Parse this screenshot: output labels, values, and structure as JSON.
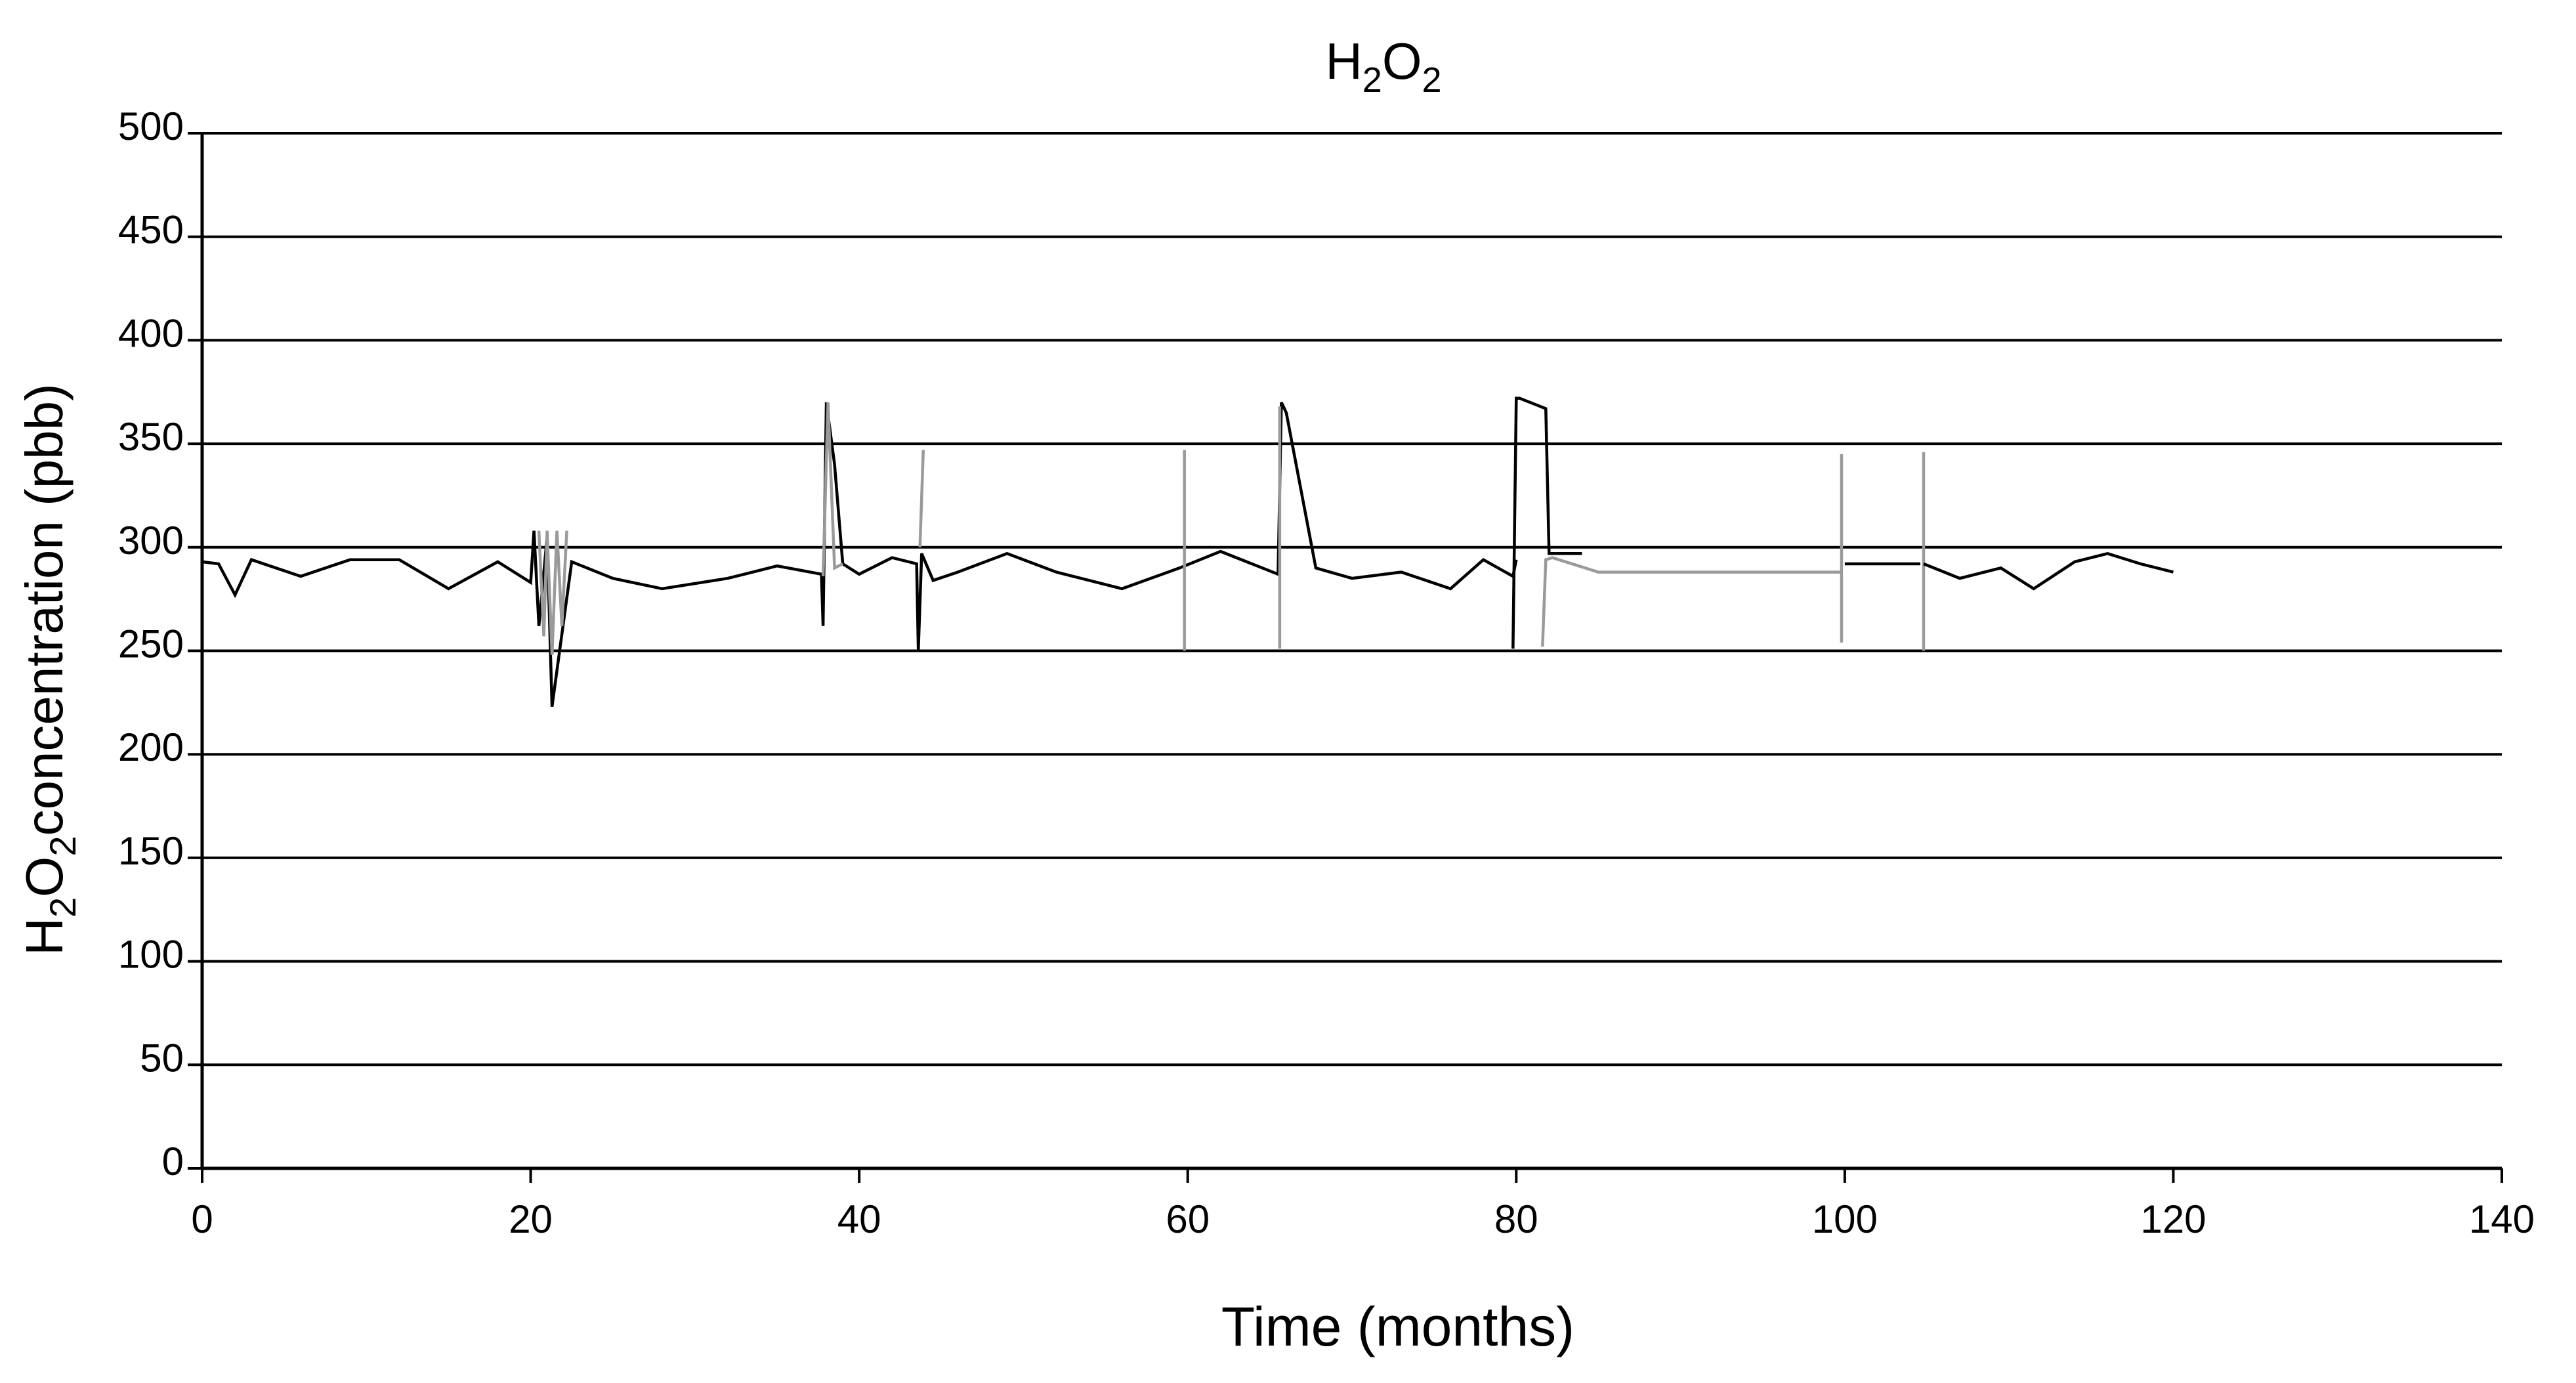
{
  "chart_data": {
    "type": "line",
    "title": {
      "base1": "H",
      "sub1": "2",
      "base2": "O",
      "sub2": "2"
    },
    "xlabel": "Time (months)",
    "ylabel": {
      "base1": "H",
      "sub1": "2",
      "base2": "O",
      "sub2": "2",
      "rest": "concentration (pbb)"
    },
    "xlim": [
      0,
      140
    ],
    "ylim": [
      0,
      500
    ],
    "xticks": [
      0,
      20,
      40,
      60,
      80,
      100,
      120,
      140
    ],
    "yticks": [
      0,
      50,
      100,
      150,
      200,
      250,
      300,
      350,
      400,
      450,
      500
    ],
    "grid": "horizontal",
    "legend": "none",
    "colors": {
      "primary_line": "#000000",
      "secondary_line": "#9a9a9a",
      "grid": "#000000"
    },
    "series": [
      {
        "color": "#000000",
        "x": [
          0,
          1,
          2,
          3,
          6,
          9,
          12,
          15,
          18,
          20,
          20.2,
          20.5,
          21,
          21.3,
          22.5,
          25,
          28,
          32,
          35,
          37.7,
          37.8,
          38,
          38.5,
          39,
          40,
          42,
          43.5,
          43.6,
          43.8,
          44.5,
          46,
          49,
          52,
          56,
          59.5,
          62,
          65.5,
          65.7,
          66,
          67.8,
          70,
          73,
          76,
          78,
          79.8,
          80
        ],
        "y": [
          293,
          292,
          277,
          294,
          286,
          294,
          294,
          280,
          293,
          283,
          308,
          262,
          305,
          223,
          293,
          285,
          280,
          285,
          291,
          287,
          262,
          370,
          340,
          292,
          287,
          295,
          292,
          250,
          297,
          284,
          288,
          297,
          288,
          280,
          290,
          298,
          287,
          370,
          365,
          290,
          285,
          288,
          280,
          294,
          286,
          294
        ]
      },
      {
        "color": "#9a9a9a",
        "x": [
          20.5,
          20.8,
          21,
          21.3,
          21.6,
          21.9,
          22.2
        ],
        "y": [
          308,
          257,
          308,
          248,
          308,
          262,
          308
        ]
      },
      {
        "color": "#9a9a9a",
        "x": [
          37.8,
          38.1,
          38.5,
          39
        ],
        "y": [
          286,
          370,
          290,
          292
        ]
      },
      {
        "color": "#9a9a9a",
        "x": [
          43.7,
          43.9
        ],
        "y": [
          300,
          347
        ]
      },
      {
        "color": "#9a9a9a",
        "x": [
          59.8,
          59.8
        ],
        "y": [
          250,
          347
        ]
      },
      {
        "color": "#9a9a9a",
        "x": [
          65.6,
          65.6
        ],
        "y": [
          251,
          368
        ]
      },
      {
        "color": "#000000",
        "x": [
          79.8,
          80,
          80.2,
          81.8,
          82,
          84
        ],
        "y": [
          251,
          372,
          372,
          367,
          297,
          297
        ]
      },
      {
        "color": "#9a9a9a",
        "x": [
          81.6,
          81.8,
          82.2,
          85,
          90,
          99.8
        ],
        "y": [
          252,
          294,
          295,
          288,
          288,
          288
        ]
      },
      {
        "color": "#9a9a9a",
        "x": [
          99.8,
          99.8
        ],
        "y": [
          254,
          345
        ]
      },
      {
        "color": "#000000",
        "x": [
          100,
          104.6
        ],
        "y": [
          292,
          292
        ]
      },
      {
        "color": "#9a9a9a",
        "x": [
          104.8,
          104.8
        ],
        "y": [
          250,
          346
        ]
      },
      {
        "color": "#000000",
        "x": [
          104.8,
          107,
          109.5,
          111.5,
          114,
          116,
          118,
          120
        ],
        "y": [
          292,
          285,
          290,
          280,
          293,
          297,
          292,
          288
        ]
      }
    ]
  }
}
